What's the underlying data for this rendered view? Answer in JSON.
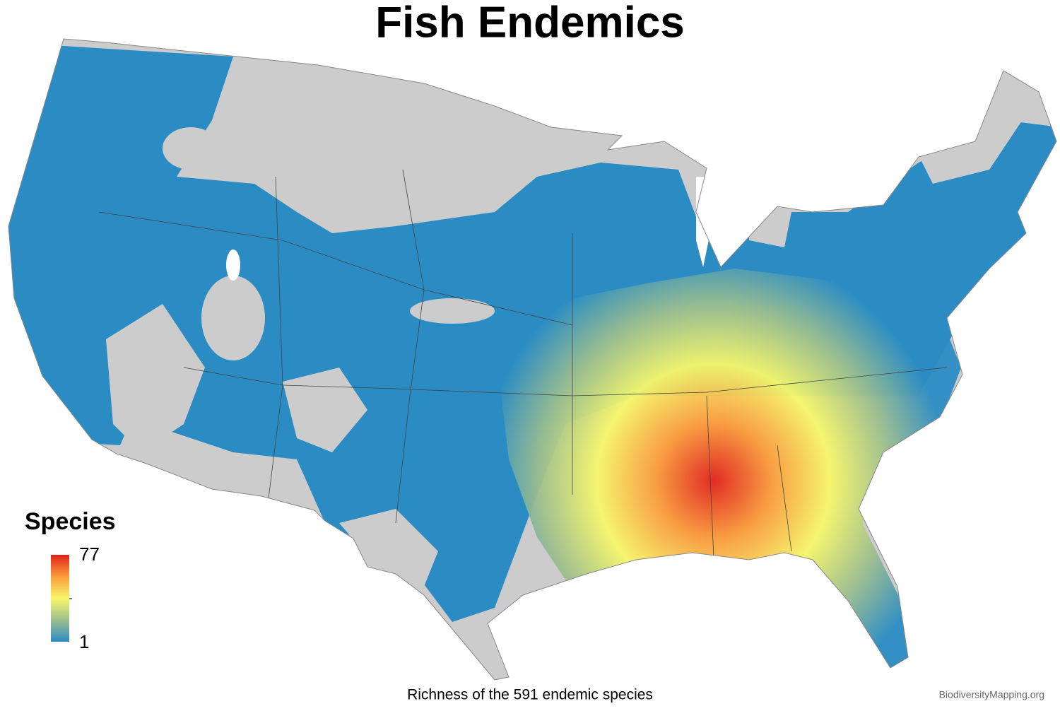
{
  "title": "Fish Endemics",
  "legend": {
    "title": "Species",
    "max": 77,
    "min": 1,
    "colors": [
      "#2b8cc4",
      "#9ebf8e",
      "#f7f76a",
      "#fb9c3c",
      "#e2231b"
    ]
  },
  "caption": "Richness of the 591 endemic species",
  "credit": "BiodiversityMapping.org"
}
